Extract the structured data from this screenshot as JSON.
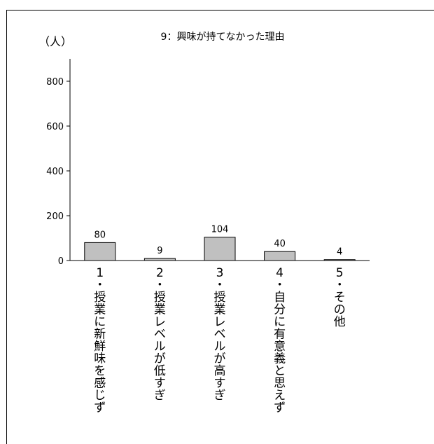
{
  "chart_data": {
    "type": "bar",
    "title": "9：興味が持てなかった理由",
    "ylabel": "（人）",
    "xlabel": "",
    "ylim": [
      0,
      900
    ],
    "yticks": [
      0,
      200,
      400,
      600,
      800
    ],
    "grid": false,
    "categories": [
      "1・授業に新鮮味を感じず",
      "2・授業レベルが低すぎ",
      "3・授業レベルが高すぎ",
      "4・自分に有意義と思えず",
      "5・その他"
    ],
    "values": [
      80,
      9,
      104,
      40,
      4
    ],
    "colors": {
      "bar_fill": "#c0c0c0",
      "bar_stroke": "#000000"
    }
  }
}
